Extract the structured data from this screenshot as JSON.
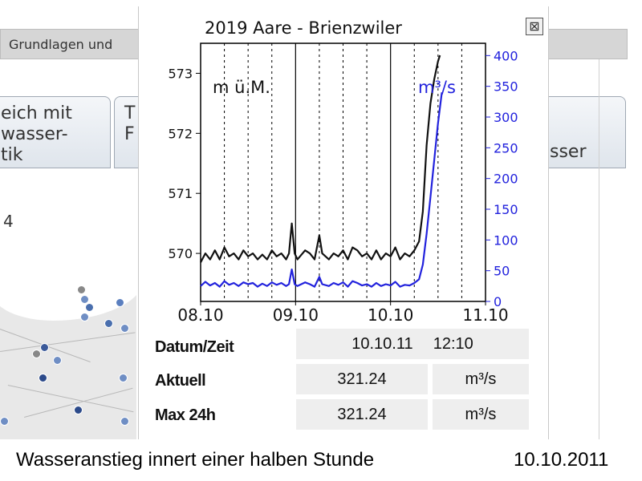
{
  "background": {
    "header_text": "Grundlagen und",
    "tab1_lines": [
      "eich mit",
      "wasser-",
      "tik"
    ],
    "tab2_lines": [
      "T",
      "F"
    ],
    "tab3_text": "sser",
    "side_number": "4"
  },
  "popup": {
    "close_symbol": "⊠",
    "info": {
      "datum_label": "Datum/Zeit",
      "datum_value": "10.10.11",
      "time_value": "12:10",
      "aktuell_label": "Aktuell",
      "aktuell_value": "321.24",
      "aktuell_unit": "m³/s",
      "max_label": "Max 24h",
      "max_value": "321.24",
      "max_unit": "m³/s"
    }
  },
  "chart_data": {
    "type": "line",
    "title": "2019 Aare - Brienzwiler",
    "left_axis_label": "m ü.M.",
    "right_axis_label": "m³/s",
    "x_ticks": [
      "08.10",
      "09.10",
      "10.10",
      "11.10"
    ],
    "x_range_days": [
      0,
      3
    ],
    "left_ticks": [
      570,
      571,
      572,
      573
    ],
    "left_range": [
      569.2,
      573.5
    ],
    "right_ticks": [
      0,
      50,
      100,
      150,
      200,
      250,
      300,
      350,
      400
    ],
    "right_range": [
      0,
      420
    ],
    "grid": "vertical dashed (6h)",
    "series": [
      {
        "name": "m ü.M.",
        "axis": "left",
        "color": "#111111",
        "points": [
          [
            0,
            569.85
          ],
          [
            0.05,
            570.0
          ],
          [
            0.1,
            569.9
          ],
          [
            0.15,
            570.05
          ],
          [
            0.2,
            569.9
          ],
          [
            0.25,
            570.1
          ],
          [
            0.3,
            569.95
          ],
          [
            0.35,
            570.0
          ],
          [
            0.4,
            569.9
          ],
          [
            0.45,
            570.05
          ],
          [
            0.5,
            569.95
          ],
          [
            0.55,
            570.0
          ],
          [
            0.6,
            569.9
          ],
          [
            0.65,
            569.98
          ],
          [
            0.7,
            569.9
          ],
          [
            0.75,
            570.05
          ],
          [
            0.8,
            569.95
          ],
          [
            0.85,
            570.0
          ],
          [
            0.9,
            569.9
          ],
          [
            0.93,
            570.0
          ],
          [
            0.96,
            570.5
          ],
          [
            0.99,
            570.0
          ],
          [
            1.02,
            569.9
          ],
          [
            1.1,
            570.05
          ],
          [
            1.15,
            570.0
          ],
          [
            1.2,
            569.9
          ],
          [
            1.25,
            570.3
          ],
          [
            1.28,
            570.0
          ],
          [
            1.35,
            569.9
          ],
          [
            1.4,
            570.0
          ],
          [
            1.45,
            569.95
          ],
          [
            1.5,
            570.05
          ],
          [
            1.55,
            569.9
          ],
          [
            1.6,
            570.1
          ],
          [
            1.65,
            570.05
          ],
          [
            1.7,
            569.95
          ],
          [
            1.75,
            570.0
          ],
          [
            1.8,
            569.9
          ],
          [
            1.85,
            570.05
          ],
          [
            1.9,
            569.9
          ],
          [
            1.95,
            570.0
          ],
          [
            2.0,
            569.95
          ],
          [
            2.05,
            570.1
          ],
          [
            2.1,
            569.9
          ],
          [
            2.15,
            570.0
          ],
          [
            2.2,
            569.95
          ],
          [
            2.25,
            570.05
          ],
          [
            2.3,
            570.2
          ],
          [
            2.34,
            570.7
          ],
          [
            2.38,
            571.8
          ],
          [
            2.42,
            572.5
          ],
          [
            2.46,
            572.9
          ],
          [
            2.5,
            573.2
          ],
          [
            2.52,
            573.3
          ]
        ]
      },
      {
        "name": "m³/s",
        "axis": "right",
        "color": "#2222dd",
        "points": [
          [
            0,
            25
          ],
          [
            0.05,
            32
          ],
          [
            0.1,
            26
          ],
          [
            0.15,
            30
          ],
          [
            0.2,
            24
          ],
          [
            0.25,
            33
          ],
          [
            0.3,
            27
          ],
          [
            0.35,
            30
          ],
          [
            0.4,
            25
          ],
          [
            0.45,
            31
          ],
          [
            0.5,
            28
          ],
          [
            0.55,
            30
          ],
          [
            0.6,
            24
          ],
          [
            0.65,
            29
          ],
          [
            0.7,
            25
          ],
          [
            0.75,
            31
          ],
          [
            0.8,
            27
          ],
          [
            0.85,
            30
          ],
          [
            0.9,
            25
          ],
          [
            0.93,
            28
          ],
          [
            0.96,
            52
          ],
          [
            0.99,
            28
          ],
          [
            1.02,
            25
          ],
          [
            1.1,
            31
          ],
          [
            1.15,
            28
          ],
          [
            1.2,
            24
          ],
          [
            1.25,
            40
          ],
          [
            1.28,
            28
          ],
          [
            1.35,
            25
          ],
          [
            1.4,
            30
          ],
          [
            1.45,
            27
          ],
          [
            1.5,
            31
          ],
          [
            1.55,
            24
          ],
          [
            1.6,
            33
          ],
          [
            1.65,
            30
          ],
          [
            1.7,
            26
          ],
          [
            1.75,
            28
          ],
          [
            1.8,
            24
          ],
          [
            1.85,
            30
          ],
          [
            1.9,
            25
          ],
          [
            1.95,
            28
          ],
          [
            2.0,
            26
          ],
          [
            2.05,
            32
          ],
          [
            2.1,
            24
          ],
          [
            2.15,
            27
          ],
          [
            2.2,
            26
          ],
          [
            2.25,
            30
          ],
          [
            2.3,
            36
          ],
          [
            2.34,
            60
          ],
          [
            2.38,
            110
          ],
          [
            2.42,
            170
          ],
          [
            2.46,
            230
          ],
          [
            2.5,
            290
          ],
          [
            2.54,
            340
          ]
        ]
      }
    ]
  },
  "caption": {
    "left": "Wasseranstieg innert einer halben Stunde",
    "right": "10.10.2011"
  }
}
